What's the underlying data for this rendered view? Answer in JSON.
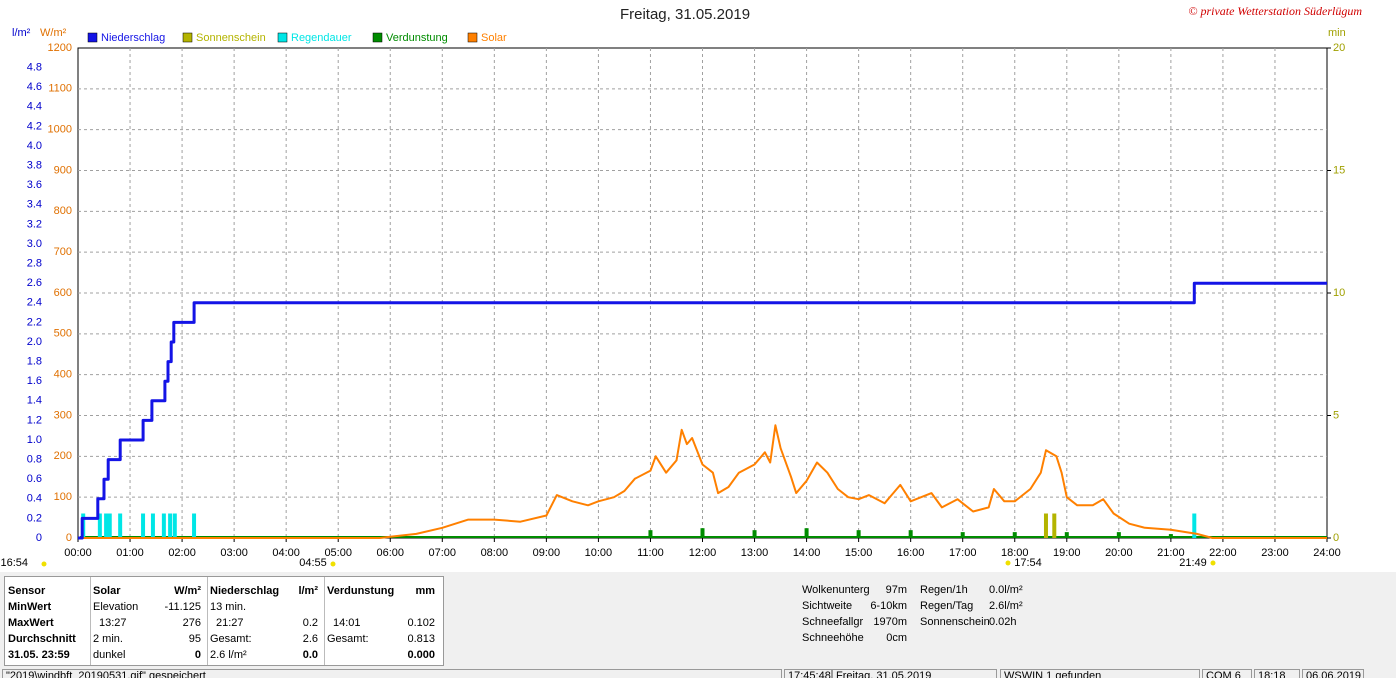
{
  "chart_data": {
    "type": "line",
    "title": "Freitag, 31.05.2019",
    "copyright": "© private Wetterstation Süderlügum",
    "y_label": "l/m²",
    "y2_label": "W/m²",
    "y3_label": "min",
    "xlim": [
      0,
      24
    ],
    "xticks": [
      {
        "value": 0,
        "label": "00:00"
      },
      {
        "value": 1,
        "label": "01:00"
      },
      {
        "value": 2,
        "label": "02:00"
      },
      {
        "value": 3,
        "label": "03:00"
      },
      {
        "value": 4,
        "label": "04:00"
      },
      {
        "value": 5,
        "label": "05:00"
      },
      {
        "value": 6,
        "label": "06:00"
      },
      {
        "value": 7,
        "label": "07:00"
      },
      {
        "value": 8,
        "label": "08:00"
      },
      {
        "value": 9,
        "label": "09:00"
      },
      {
        "value": 10,
        "label": "10:00"
      },
      {
        "value": 11,
        "label": "11:00"
      },
      {
        "value": 12,
        "label": "12:00"
      },
      {
        "value": 13,
        "label": "13:00"
      },
      {
        "value": 14,
        "label": "14:00"
      },
      {
        "value": 15,
        "label": "15:00"
      },
      {
        "value": 16,
        "label": "16:00"
      },
      {
        "value": 17,
        "label": "17:00"
      },
      {
        "value": 18,
        "label": "18:00"
      },
      {
        "value": 19,
        "label": "19:00"
      },
      {
        "value": 20,
        "label": "20:00"
      },
      {
        "value": 21,
        "label": "21:00"
      },
      {
        "value": 22,
        "label": "22:00"
      },
      {
        "value": 23,
        "label": "23:00"
      },
      {
        "value": 24,
        "label": "24:00"
      }
    ],
    "ylim": [
      0,
      5
    ],
    "yticks": [
      0,
      0.2,
      0.4,
      0.6,
      0.8,
      {
        "value": 1,
        "label": "1.0"
      },
      1.2,
      1.4,
      1.6,
      1.8,
      {
        "value": 2,
        "label": "2.0"
      },
      2.2,
      2.4,
      2.6,
      2.8,
      {
        "value": 3,
        "label": "3.0"
      },
      3.2,
      3.4,
      3.6,
      3.8,
      {
        "value": 4,
        "label": "4.0"
      },
      4.2,
      4.4,
      4.6,
      4.8
    ],
    "y2lim": [
      0,
      1200
    ],
    "y2ticks": [
      0,
      100,
      200,
      300,
      400,
      500,
      600,
      700,
      800,
      900,
      1000,
      1100,
      1200
    ],
    "y3lim": [
      0,
      20
    ],
    "y3ticks": [
      0,
      5,
      10,
      15,
      20
    ],
    "grid": true,
    "series": [
      {
        "name": "Niederschlag",
        "kind": "line",
        "color": "#1414e6",
        "axis": "y",
        "x": [
          0,
          0.08,
          0.08,
          0.38,
          0.38,
          0.5,
          0.5,
          0.58,
          0.58,
          0.81,
          0.81,
          1.25,
          1.25,
          1.42,
          1.42,
          1.67,
          1.67,
          1.73,
          1.73,
          1.79,
          1.79,
          1.84,
          1.84,
          2.23,
          2.23,
          21.45,
          21.45,
          24
        ],
        "values": [
          0,
          0,
          0.2,
          0.2,
          0.4,
          0.4,
          0.6,
          0.6,
          0.8,
          0.8,
          1.0,
          1.0,
          1.2,
          1.2,
          1.4,
          1.4,
          1.6,
          1.6,
          1.8,
          1.8,
          2.0,
          2.0,
          2.2,
          2.2,
          2.4,
          2.4,
          2.6,
          2.6
        ]
      },
      {
        "name": "Sonnenschein",
        "kind": "bar",
        "color": "#b4b400",
        "axis": "y3",
        "x": [
          18.6,
          18.76
        ],
        "values": [
          1,
          1
        ]
      },
      {
        "name": "Regendauer",
        "kind": "bar",
        "color": "#00e6e6",
        "axis": "y3",
        "x": [
          0.1,
          0.42,
          0.54,
          0.61,
          0.81,
          1.25,
          1.44,
          1.65,
          1.77,
          1.86,
          2.23,
          21.45
        ],
        "values": [
          1,
          1,
          1,
          1,
          1,
          1,
          1,
          1,
          1,
          1,
          1,
          1
        ]
      },
      {
        "name": "Verdunstung",
        "kind": "bar",
        "color": "#008c00",
        "axis": "y",
        "x": [
          11,
          12,
          13,
          14,
          15,
          16,
          17,
          18,
          19,
          20,
          21
        ],
        "values": [
          0.08,
          0.1,
          0.08,
          0.1,
          0.08,
          0.08,
          0.06,
          0.06,
          0.06,
          0.06,
          0.04
        ]
      },
      {
        "name": "Solar",
        "kind": "line",
        "color": "#ff8000",
        "axis": "y2",
        "x": [
          0,
          5.8,
          6,
          6.5,
          7,
          7.5,
          8,
          8.5,
          9,
          9.2,
          9.5,
          9.8,
          10,
          10.3,
          10.5,
          10.7,
          11,
          11.1,
          11.3,
          11.5,
          11.6,
          11.7,
          11.8,
          12,
          12.2,
          12.3,
          12.5,
          12.7,
          13,
          13.2,
          13.3,
          13.4,
          13.5,
          13.7,
          13.8,
          14,
          14.2,
          14.4,
          14.6,
          14.8,
          15,
          15.2,
          15.5,
          15.8,
          16,
          16.4,
          16.6,
          16.9,
          17.2,
          17.5,
          17.6,
          17.8,
          18,
          18.3,
          18.5,
          18.6,
          18.8,
          18.9,
          19,
          19.2,
          19.5,
          19.7,
          19.9,
          20.2,
          20.5,
          21,
          21.5,
          21.8,
          24
        ],
        "values": [
          0,
          0,
          3,
          10,
          25,
          45,
          45,
          40,
          55,
          105,
          90,
          80,
          90,
          100,
          115,
          145,
          165,
          200,
          160,
          190,
          265,
          230,
          245,
          180,
          160,
          110,
          125,
          160,
          180,
          210,
          185,
          276,
          220,
          150,
          110,
          140,
          185,
          160,
          120,
          100,
          95,
          105,
          85,
          130,
          90,
          110,
          75,
          95,
          65,
          75,
          120,
          90,
          90,
          120,
          160,
          215,
          200,
          160,
          100,
          80,
          80,
          95,
          60,
          35,
          25,
          20,
          10,
          0,
          0
        ]
      }
    ],
    "sun_times": [
      "16:54",
      "04:55",
      "17:54",
      "21:49"
    ]
  },
  "stats": {
    "first_column": [
      "Sensor",
      "MinWert",
      "MaxWert",
      "Durchschnitt",
      "31.05. 23:59"
    ],
    "groups": [
      {
        "title": "Solar",
        "unit": "W/m²",
        "rows": [
          [
            "Elevation",
            "-11.125"
          ],
          [
            "13:27",
            "276"
          ],
          [
            "2 min.",
            "95"
          ],
          [
            "dunkel",
            "0"
          ]
        ]
      },
      {
        "title": "Niederschlag",
        "unit": "l/m²",
        "rows": [
          [
            "13 min.",
            null
          ],
          [
            "21:27",
            "0.2"
          ],
          [
            "Gesamt:",
            "2.6"
          ],
          [
            "2.6 l/m²",
            "0.0"
          ]
        ]
      },
      {
        "title": "Verdunstung",
        "unit": "mm",
        "rows": [
          [
            null,
            null
          ],
          [
            "14:01",
            "0.102"
          ],
          [
            "Gesamt:",
            "0.813"
          ],
          [
            null,
            "0.000"
          ]
        ]
      }
    ]
  },
  "conditions": [
    [
      [
        "Wolkenunterg",
        "97m"
      ],
      [
        "Sichtweite",
        "6-10km"
      ],
      [
        "Schneefallgr",
        "1970m"
      ],
      [
        "Schneehöhe",
        "0cm"
      ]
    ],
    [
      [
        "Regen/1h",
        "0.0l/m²"
      ],
      [
        "Regen/Tag",
        "2.6l/m²"
      ],
      [
        "Sonnenschein",
        "0.02h"
      ]
    ]
  ],
  "status_bar": [
    "\"2019\\windbft_20190531.gif\" gespeichert",
    "17:45:48",
    "Freitag, 31.05.2019",
    "WSWIN 1 gefunden",
    "COM 6",
    "18:18",
    "06.06.2019"
  ]
}
